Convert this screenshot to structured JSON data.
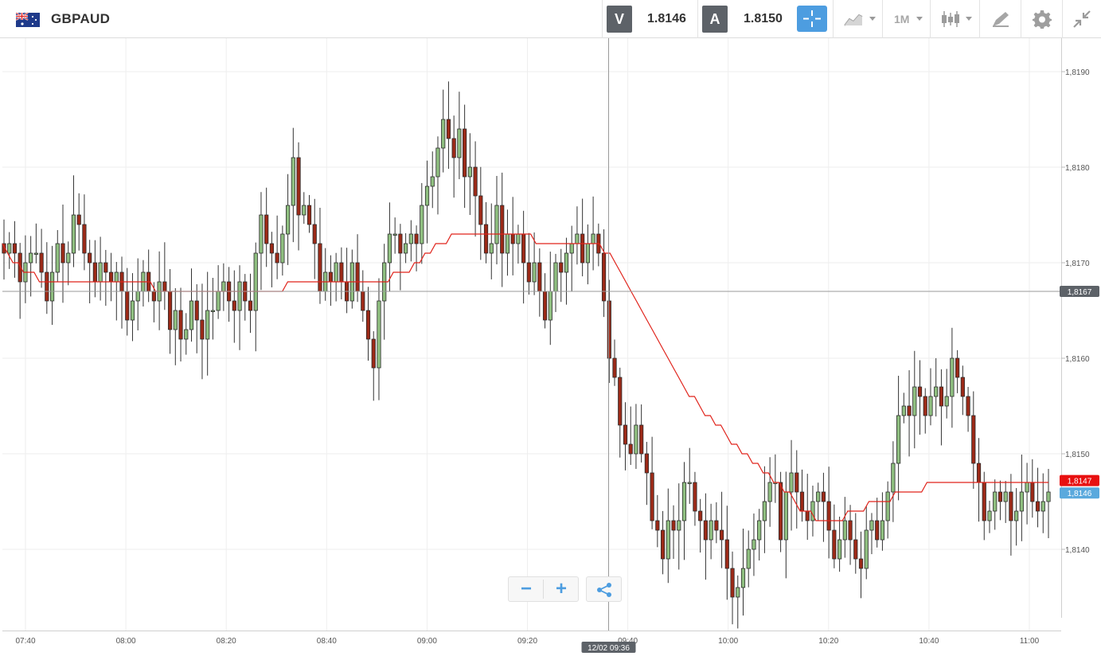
{
  "toolbar": {
    "symbol": "GBPAUD",
    "sell_label": "V",
    "sell_price": "1.8146",
    "buy_label": "A",
    "buy_price": "1.8150",
    "timeframe": "1M",
    "icons": [
      "flag-gbp-aud-icon",
      "crosshair-icon",
      "line-chart-icon",
      "candlestick-icon",
      "draw-icon",
      "gear-icon",
      "collapse-icon"
    ]
  },
  "colors": {
    "bull": "#8fbf80",
    "bear": "#9c2a18",
    "ma_line": "#e0231b",
    "accent": "#4d9de0",
    "badge_dark": "#5d6268",
    "badge_red": "#e81010",
    "badge_blue": "#5aa9dd"
  },
  "chart_data": {
    "type": "candlestick",
    "x_tick_labels": [
      "07:40",
      "08:00",
      "08:20",
      "08:40",
      "09:00",
      "09:20",
      "09:40",
      "10:00",
      "10:20",
      "10:40",
      "11:00"
    ],
    "y_tick_labels": [
      "1,8190",
      "1,8180",
      "1,8170",
      "1,8160",
      "1,8150",
      "1,8140"
    ],
    "ylim": [
      1.81315,
      1.81935
    ],
    "crosshair": {
      "x_label": "12/02 09:36",
      "y_label": "1,8167",
      "y_value": 1.8167
    },
    "price_badges": [
      {
        "label": "1,8147",
        "value": 1.8147,
        "color": "red"
      },
      {
        "label": "1,8146",
        "value": 1.8146,
        "color": "blue"
      }
    ],
    "series_close": [
      1.8171,
      1.8172,
      1.8171,
      1.8168,
      1.817,
      1.8171,
      1.8171,
      1.8169,
      1.8166,
      1.8169,
      1.8172,
      1.817,
      1.8171,
      1.8175,
      1.8174,
      1.8171,
      1.817,
      1.8168,
      1.817,
      1.8169,
      1.8168,
      1.8169,
      1.8167,
      1.8164,
      1.8166,
      1.8167,
      1.8169,
      1.8167,
      1.8166,
      1.8168,
      1.8167,
      1.8163,
      1.8165,
      1.8162,
      1.8163,
      1.8166,
      1.8164,
      1.8162,
      1.8165,
      1.8165,
      1.8167,
      1.8168,
      1.8166,
      1.8165,
      1.8168,
      1.8166,
      1.8165,
      1.8171,
      1.8175,
      1.8172,
      1.8171,
      1.817,
      1.8173,
      1.8176,
      1.8181,
      1.8175,
      1.8176,
      1.8174,
      1.8172,
      1.8167,
      1.8169,
      1.8168,
      1.817,
      1.8168,
      1.8166,
      1.817,
      1.8167,
      1.8165,
      1.8162,
      1.8159,
      1.8166,
      1.817,
      1.8173,
      1.8173,
      1.8171,
      1.8172,
      1.8173,
      1.8172,
      1.8176,
      1.8178,
      1.8179,
      1.8182,
      1.8185,
      1.8183,
      1.8181,
      1.8184,
      1.8179,
      1.818,
      1.8177,
      1.8174,
      1.8171,
      1.8172,
      1.8176,
      1.8171,
      1.8173,
      1.8172,
      1.8173,
      1.817,
      1.8168,
      1.817,
      1.8167,
      1.8164,
      1.8167,
      1.817,
      1.8169,
      1.8171,
      1.8172,
      1.8173,
      1.817,
      1.8172,
      1.8173,
      1.8171,
      1.8166,
      1.816,
      1.8158,
      1.8153,
      1.8151,
      1.815,
      1.8153,
      1.815,
      1.8148,
      1.8143,
      1.8142,
      1.8139,
      1.8143,
      1.8142,
      1.8143,
      1.8147,
      1.8147,
      1.8144,
      1.8143,
      1.8141,
      1.8143,
      1.8142,
      1.8141,
      1.8138,
      1.8135,
      1.8136,
      1.8138,
      1.814,
      1.8141,
      1.8143,
      1.8145,
      1.8147,
      1.8147,
      1.8141,
      1.8146,
      1.8148,
      1.8146,
      1.8144,
      1.8143,
      1.8145,
      1.8146,
      1.8145,
      1.8142,
      1.8139,
      1.8141,
      1.8143,
      1.8141,
      1.8139,
      1.8138,
      1.8142,
      1.8143,
      1.8141,
      1.8143,
      1.8146,
      1.8149,
      1.8154,
      1.8155,
      1.8154,
      1.8157,
      1.8156,
      1.8154,
      1.8156,
      1.8157,
      1.8155,
      1.8156,
      1.816,
      1.8158,
      1.8156,
      1.8154,
      1.8149,
      1.8147,
      1.8143,
      1.8144,
      1.8146,
      1.8145,
      1.8146,
      1.8143,
      1.8144,
      1.8146,
      1.8147,
      1.8145,
      1.8144,
      1.8145,
      1.8146
    ],
    "ma_values": [
      1.8172,
      1.8171,
      1.817,
      1.817,
      1.8169,
      1.8169,
      1.8169,
      1.8168,
      1.8168,
      1.8168,
      1.8168,
      1.8168,
      1.8168,
      1.8168,
      1.8168,
      1.8168,
      1.8168,
      1.8168,
      1.8168,
      1.8168,
      1.8168,
      1.8168,
      1.8168,
      1.8168,
      1.8168,
      1.8168,
      1.8168,
      1.8168,
      1.8168,
      1.8167,
      1.8167,
      1.8167,
      1.8167,
      1.8167,
      1.8167,
      1.8167,
      1.8167,
      1.8167,
      1.8167,
      1.8167,
      1.8167,
      1.8167,
      1.8167,
      1.8167,
      1.8167,
      1.8167,
      1.8167,
      1.8167,
      1.8167,
      1.8167,
      1.8167,
      1.8167,
      1.8167,
      1.8167,
      1.8168,
      1.8168,
      1.8168,
      1.8168,
      1.8168,
      1.8168,
      1.8168,
      1.8168,
      1.8168,
      1.8168,
      1.8168,
      1.8168,
      1.8168,
      1.8168,
      1.8168,
      1.8168,
      1.8168,
      1.8168,
      1.8168,
      1.8168,
      1.8169,
      1.8169,
      1.8169,
      1.8169,
      1.817,
      1.817,
      1.8171,
      1.8171,
      1.8172,
      1.8172,
      1.8172,
      1.8173,
      1.8173,
      1.8173,
      1.8173,
      1.8173,
      1.8173,
      1.8173,
      1.8173,
      1.8173,
      1.8173,
      1.8173,
      1.8173,
      1.8173,
      1.8173,
      1.8173,
      1.8173,
      1.8172,
      1.8172,
      1.8172,
      1.8172,
      1.8172,
      1.8172,
      1.8172,
      1.8172,
      1.8172,
      1.8172,
      1.8172,
      1.8172,
      1.8172,
      1.8171,
      1.8171,
      1.817,
      1.8169,
      1.8168,
      1.8167,
      1.8166,
      1.8165,
      1.8164,
      1.8163,
      1.8162,
      1.8161,
      1.816,
      1.8159,
      1.8158,
      1.8157,
      1.8156,
      1.8156,
      1.8155,
      1.8154,
      1.8154,
      1.8153,
      1.8153,
      1.8152,
      1.8151,
      1.8151,
      1.815,
      1.815,
      1.8149,
      1.8149,
      1.8148,
      1.8148,
      1.8147,
      1.8147,
      1.8146,
      1.8146,
      1.8145,
      1.8144,
      1.8144,
      1.8144,
      1.8143,
      1.8143,
      1.8143,
      1.8143,
      1.8143,
      1.8143,
      1.8144,
      1.8144,
      1.8144,
      1.8144,
      1.8145,
      1.8145,
      1.8145,
      1.8145,
      1.8145,
      1.8146,
      1.8146,
      1.8146,
      1.8146,
      1.8146,
      1.8146,
      1.8147,
      1.8147,
      1.8147,
      1.8147,
      1.8147,
      1.8147,
      1.8147,
      1.8147,
      1.8147,
      1.8147,
      1.8147,
      1.8147,
      1.8147,
      1.8147,
      1.8147,
      1.8147,
      1.8147,
      1.8147,
      1.8147,
      1.8147,
      1.8147,
      1.8147,
      1.8147,
      1.8147
    ],
    "grid": true
  }
}
